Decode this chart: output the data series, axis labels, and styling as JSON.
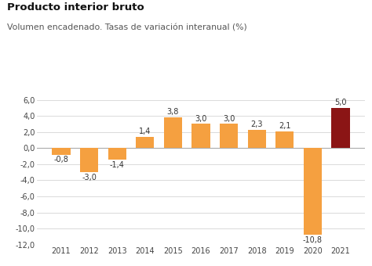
{
  "title": "Producto interior bruto",
  "subtitle": "Volumen encadenado. Tasas de variación interanual (%)",
  "years": [
    2011,
    2012,
    2013,
    2014,
    2015,
    2016,
    2017,
    2018,
    2019,
    2020,
    2021
  ],
  "values": [
    -0.8,
    -3.0,
    -1.4,
    1.4,
    3.8,
    3.0,
    3.0,
    2.3,
    2.1,
    -10.8,
    5.0
  ],
  "bar_colors": [
    "#F5A040",
    "#F5A040",
    "#F5A040",
    "#F5A040",
    "#F5A040",
    "#F5A040",
    "#F5A040",
    "#F5A040",
    "#F5A040",
    "#F5A040",
    "#8B1515"
  ],
  "ylim": [
    -12.0,
    6.5
  ],
  "yticks": [
    -12.0,
    -10.0,
    -8.0,
    -6.0,
    -4.0,
    -2.0,
    0.0,
    2.0,
    4.0,
    6.0
  ],
  "background_color": "#FFFFFF",
  "plot_bg_color": "#FFFFFF",
  "title_fontsize": 9.5,
  "subtitle_fontsize": 7.8,
  "label_fontsize": 7.0,
  "tick_fontsize": 7.0
}
